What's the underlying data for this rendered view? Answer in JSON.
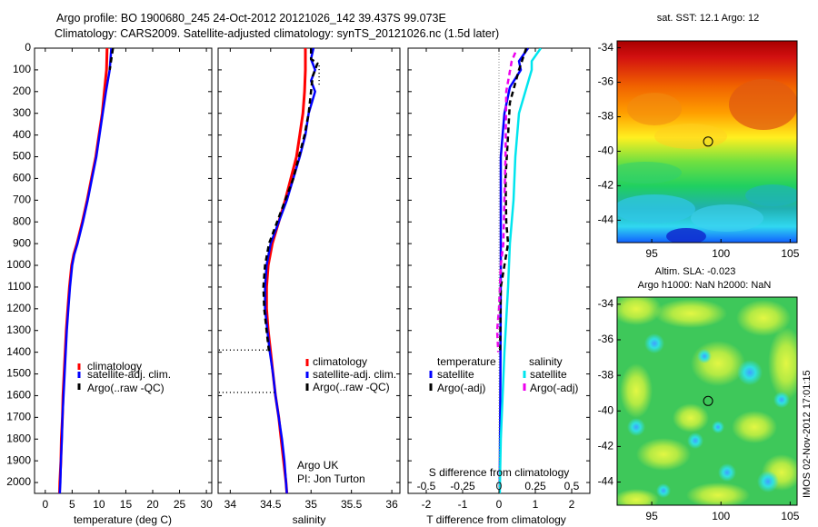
{
  "header": {
    "title_line1": "Argo profile: BO 1900680_245 24-Oct-2012 20121026_142 39.437S 99.073E",
    "title_line2": "Climatology: CARS2009. Satellite-adjusted climatology: synTS_20121026.nc (1.5d later)"
  },
  "side_credit": "IMOS 02-Nov-2012 17:01:15",
  "colors": {
    "climatology": "#ff0000",
    "satellite": "#0000ff",
    "argo": "#000000",
    "satellite_salinity": "#00e5ee",
    "argo_adj_salinity": "#ee00ee"
  },
  "chart_data": [
    {
      "id": "temperature",
      "type": "line",
      "xlabel": "temperature (deg C)",
      "xlim": [
        -2,
        31
      ],
      "xticks": [
        "0",
        "5",
        "10",
        "15",
        "20",
        "25",
        "30"
      ],
      "xtick_values": [
        0,
        5,
        10,
        15,
        20,
        25,
        30
      ],
      "ylim": [
        0,
        2050
      ],
      "yticks": [
        "0",
        "100",
        "200",
        "300",
        "400",
        "500",
        "600",
        "700",
        "800",
        "900",
        "1000",
        "1100",
        "1200",
        "1300",
        "1400",
        "1500",
        "1600",
        "1700",
        "1800",
        "1900",
        "2000"
      ],
      "legend": [
        "climatology",
        "satellite-adj. clim.",
        "Argo(..raw -QC)"
      ],
      "series": [
        {
          "name": "climatology",
          "color": "#ff0000",
          "width": 3,
          "dash": "",
          "points": [
            [
              11.5,
              0
            ],
            [
              11.4,
              100
            ],
            [
              11.0,
              200
            ],
            [
              10.6,
              300
            ],
            [
              10.0,
              400
            ],
            [
              9.4,
              500
            ],
            [
              8.6,
              600
            ],
            [
              7.8,
              700
            ],
            [
              6.9,
              800
            ],
            [
              5.9,
              900
            ],
            [
              5.3,
              950
            ],
            [
              4.9,
              1000
            ],
            [
              4.5,
              1100
            ],
            [
              4.2,
              1200
            ],
            [
              3.9,
              1300
            ],
            [
              3.7,
              1400
            ],
            [
              3.5,
              1500
            ],
            [
              3.3,
              1600
            ],
            [
              3.2,
              1700
            ],
            [
              3.0,
              1800
            ],
            [
              2.9,
              1900
            ],
            [
              2.7,
              2000
            ],
            [
              2.65,
              2050
            ]
          ]
        },
        {
          "name": "satellite-adj. clim.",
          "color": "#0000ff",
          "width": 2.5,
          "dash": "",
          "points": [
            [
              12.3,
              0
            ],
            [
              12.0,
              100
            ],
            [
              11.3,
              200
            ],
            [
              10.7,
              300
            ],
            [
              10.1,
              400
            ],
            [
              9.5,
              500
            ],
            [
              8.7,
              600
            ],
            [
              7.9,
              700
            ],
            [
              7.0,
              800
            ],
            [
              6.0,
              900
            ],
            [
              5.4,
              950
            ],
            [
              5.0,
              1000
            ],
            [
              4.6,
              1100
            ],
            [
              4.3,
              1200
            ],
            [
              4.0,
              1300
            ],
            [
              3.8,
              1400
            ],
            [
              3.6,
              1500
            ],
            [
              3.4,
              1600
            ],
            [
              3.2,
              1700
            ],
            [
              3.1,
              1800
            ],
            [
              2.9,
              1900
            ],
            [
              2.8,
              2000
            ],
            [
              2.7,
              2050
            ]
          ]
        },
        {
          "name": "Argo(..raw -QC)",
          "color": "#000000",
          "width": 2.5,
          "dash": "6,4",
          "points": [
            [
              12.6,
              0
            ],
            [
              12.3,
              50
            ],
            [
              12.0,
              100
            ]
          ]
        }
      ]
    },
    {
      "id": "salinity",
      "type": "line",
      "xlabel": "salinity",
      "xlim": [
        33.85,
        36.1
      ],
      "xticks": [
        "34",
        "34.5",
        "35",
        "35.5",
        "36"
      ],
      "xtick_values": [
        34,
        34.5,
        35,
        35.5,
        36
      ],
      "ylim": [
        0,
        2050
      ],
      "legend": [
        "climatology",
        "satellite-adj. clim.",
        "Argo(..raw -QC)"
      ],
      "annotation": [
        "Argo UK",
        "PI: Jon Turton"
      ],
      "series": [
        {
          "name": "climatology",
          "color": "#ff0000",
          "width": 3,
          "dash": "",
          "points": [
            [
              34.93,
              0
            ],
            [
              34.93,
              100
            ],
            [
              34.92,
              200
            ],
            [
              34.9,
              300
            ],
            [
              34.86,
              400
            ],
            [
              34.82,
              500
            ],
            [
              34.75,
              600
            ],
            [
              34.68,
              700
            ],
            [
              34.6,
              800
            ],
            [
              34.52,
              900
            ],
            [
              34.47,
              1000
            ],
            [
              34.45,
              1100
            ],
            [
              34.45,
              1200
            ],
            [
              34.47,
              1300
            ],
            [
              34.5,
              1400
            ],
            [
              34.53,
              1500
            ],
            [
              34.56,
              1600
            ],
            [
              34.6,
              1700
            ],
            [
              34.63,
              1800
            ],
            [
              34.66,
              1900
            ],
            [
              34.69,
              2000
            ],
            [
              34.7,
              2050
            ]
          ]
        },
        {
          "name": "satellite-adj. clim.",
          "color": "#0000ff",
          "width": 2.5,
          "dash": "",
          "points": [
            [
              35.03,
              0
            ],
            [
              35.0,
              50
            ],
            [
              35.05,
              100
            ],
            [
              35.0,
              150
            ],
            [
              35.05,
              200
            ],
            [
              34.97,
              300
            ],
            [
              34.93,
              400
            ],
            [
              34.86,
              500
            ],
            [
              34.78,
              600
            ],
            [
              34.7,
              700
            ],
            [
              34.6,
              800
            ],
            [
              34.5,
              900
            ],
            [
              34.45,
              1000
            ],
            [
              34.43,
              1100
            ],
            [
              34.43,
              1200
            ],
            [
              34.46,
              1300
            ],
            [
              34.49,
              1400
            ],
            [
              34.53,
              1500
            ],
            [
              34.56,
              1600
            ],
            [
              34.6,
              1700
            ],
            [
              34.64,
              1800
            ],
            [
              34.67,
              1900
            ],
            [
              34.69,
              2000
            ],
            [
              34.7,
              2050
            ]
          ]
        },
        {
          "name": "Argo(..raw -QC)",
          "color": "#000000",
          "width": 2.5,
          "dash": "6,4",
          "points": [
            [
              35.0,
              0
            ],
            [
              35.0,
              50
            ],
            [
              35.08,
              70
            ],
            [
              35.02,
              130
            ],
            [
              35.0,
              200
            ],
            [
              34.97,
              300
            ],
            [
              34.92,
              400
            ],
            [
              34.85,
              500
            ],
            [
              34.78,
              600
            ],
            [
              34.68,
              700
            ],
            [
              34.58,
              800
            ],
            [
              34.48,
              900
            ],
            [
              34.43,
              1000
            ],
            [
              34.41,
              1100
            ],
            [
              34.42,
              1200
            ],
            [
              34.45,
              1300
            ],
            [
              34.48,
              1400
            ]
          ]
        },
        {
          "name": "Argo-raw-extra",
          "color": "#000000",
          "width": 1.5,
          "dash": "1,3",
          "points": [
            [
              35.1,
              80
            ],
            [
              35.1,
              170
            ]
          ]
        },
        {
          "name": "Argo-raw-1390",
          "color": "#000000",
          "width": 1.5,
          "dash": "1,3",
          "points": [
            [
              33.86,
              1390
            ],
            [
              34.48,
              1390
            ]
          ]
        },
        {
          "name": "Argo-raw-1585",
          "color": "#000000",
          "width": 1.5,
          "dash": "1,3",
          "points": [
            [
              33.86,
              1585
            ],
            [
              34.55,
              1585
            ]
          ]
        }
      ]
    },
    {
      "id": "difference",
      "type": "line",
      "xlabel": "T difference from climatology",
      "xlabel_top": "S difference from climatology",
      "xlim": [
        -2.5,
        2.5
      ],
      "xticks": [
        "-2",
        "-1",
        "0",
        "1",
        "2"
      ],
      "xtick_values": [
        -2,
        -1,
        0,
        1,
        2
      ],
      "xticks_top": [
        "-0.5",
        "-0.25",
        "0",
        "0.25",
        "0.5"
      ],
      "xticks_top_values": [
        -2,
        -1,
        0,
        1,
        2
      ],
      "ylim": [
        0,
        2050
      ],
      "legend_left_title": "temperature",
      "legend_left": [
        "satellite",
        "Argo(-adj)"
      ],
      "legend_right_title": "salinity",
      "legend_right": [
        "satellite",
        "Argo(-adj)"
      ],
      "series": [
        {
          "name": "temperature satellite",
          "color": "#0000ff",
          "width": 2.5,
          "dash": "",
          "points": [
            [
              0.8,
              0
            ],
            [
              0.55,
              60
            ],
            [
              0.6,
              100
            ],
            [
              0.3,
              180
            ],
            [
              0.15,
              300
            ],
            [
              0.05,
              500
            ],
            [
              0.05,
              700
            ],
            [
              0.05,
              1000
            ],
            [
              0.04,
              1500
            ],
            [
              0.02,
              2000
            ],
            [
              0.02,
              2050
            ]
          ]
        },
        {
          "name": "temperature Argo(-adj)",
          "color": "#000000",
          "width": 2.5,
          "dash": "6,4",
          "points": [
            [
              0.75,
              0
            ],
            [
              0.65,
              50
            ],
            [
              0.55,
              100
            ],
            [
              0.3,
              250
            ],
            [
              0.25,
              400
            ],
            [
              0.18,
              600
            ],
            [
              0.2,
              800
            ],
            [
              0.25,
              900
            ],
            [
              0.05,
              1100
            ],
            [
              0.03,
              1400
            ]
          ]
        },
        {
          "name": "salinity satellite",
          "color": "#00e5ee",
          "width": 2.5,
          "dash": "",
          "points": [
            [
              1.15,
              0
            ],
            [
              0.9,
              60
            ],
            [
              0.9,
              100
            ],
            [
              0.55,
              300
            ],
            [
              0.45,
              500
            ],
            [
              0.4,
              700
            ],
            [
              0.3,
              900
            ],
            [
              0.25,
              1100
            ],
            [
              0.15,
              1400
            ],
            [
              0.05,
              1800
            ],
            [
              0.02,
              2050
            ]
          ]
        },
        {
          "name": "salinity Argo(-adj)",
          "color": "#ee00ee",
          "width": 2.5,
          "dash": "6,4",
          "points": [
            [
              0.45,
              20
            ],
            [
              0.35,
              60
            ],
            [
              0.2,
              200
            ],
            [
              0.18,
              500
            ],
            [
              0.15,
              700
            ],
            [
              0.12,
              900
            ],
            [
              0.05,
              1000
            ],
            [
              0.0,
              1200
            ],
            [
              -0.05,
              1300
            ],
            [
              -0.02,
              1400
            ]
          ]
        },
        {
          "name": "zero-line",
          "color": "#888888",
          "width": 1,
          "dash": "1,2",
          "points": [
            [
              0,
              0
            ],
            [
              0,
              2050
            ]
          ]
        }
      ]
    },
    {
      "id": "sst_map",
      "type": "heatmap",
      "title": "sat. SST: 12.1 Argo: 12",
      "xticks": [
        "95",
        "100",
        "105"
      ],
      "xtick_values": [
        95,
        100,
        105
      ],
      "yticks": [
        "-34",
        "-36",
        "-38",
        "-40",
        "-42",
        "-44"
      ],
      "ytick_values": [
        -34,
        -36,
        -38,
        -40,
        -42,
        -44
      ],
      "xlim": [
        92.5,
        105.5
      ],
      "ylim": [
        -45.3,
        -33.6
      ],
      "marker": [
        99.07,
        -39.44
      ]
    },
    {
      "id": "sla_map",
      "type": "heatmap",
      "title_line1": "Altim. SLA: -0.023",
      "title_line2": "Argo h1000: NaN h2000: NaN",
      "xticks": [
        "95",
        "100",
        "105"
      ],
      "xtick_values": [
        95,
        100,
        105
      ],
      "yticks": [
        "-34",
        "-36",
        "-38",
        "-40",
        "-42",
        "-44"
      ],
      "ytick_values": [
        -34,
        -36,
        -38,
        -40,
        -42,
        -44
      ],
      "xlim": [
        92.5,
        105.5
      ],
      "ylim": [
        -45.3,
        -33.6
      ],
      "marker": [
        99.07,
        -39.44
      ]
    }
  ]
}
